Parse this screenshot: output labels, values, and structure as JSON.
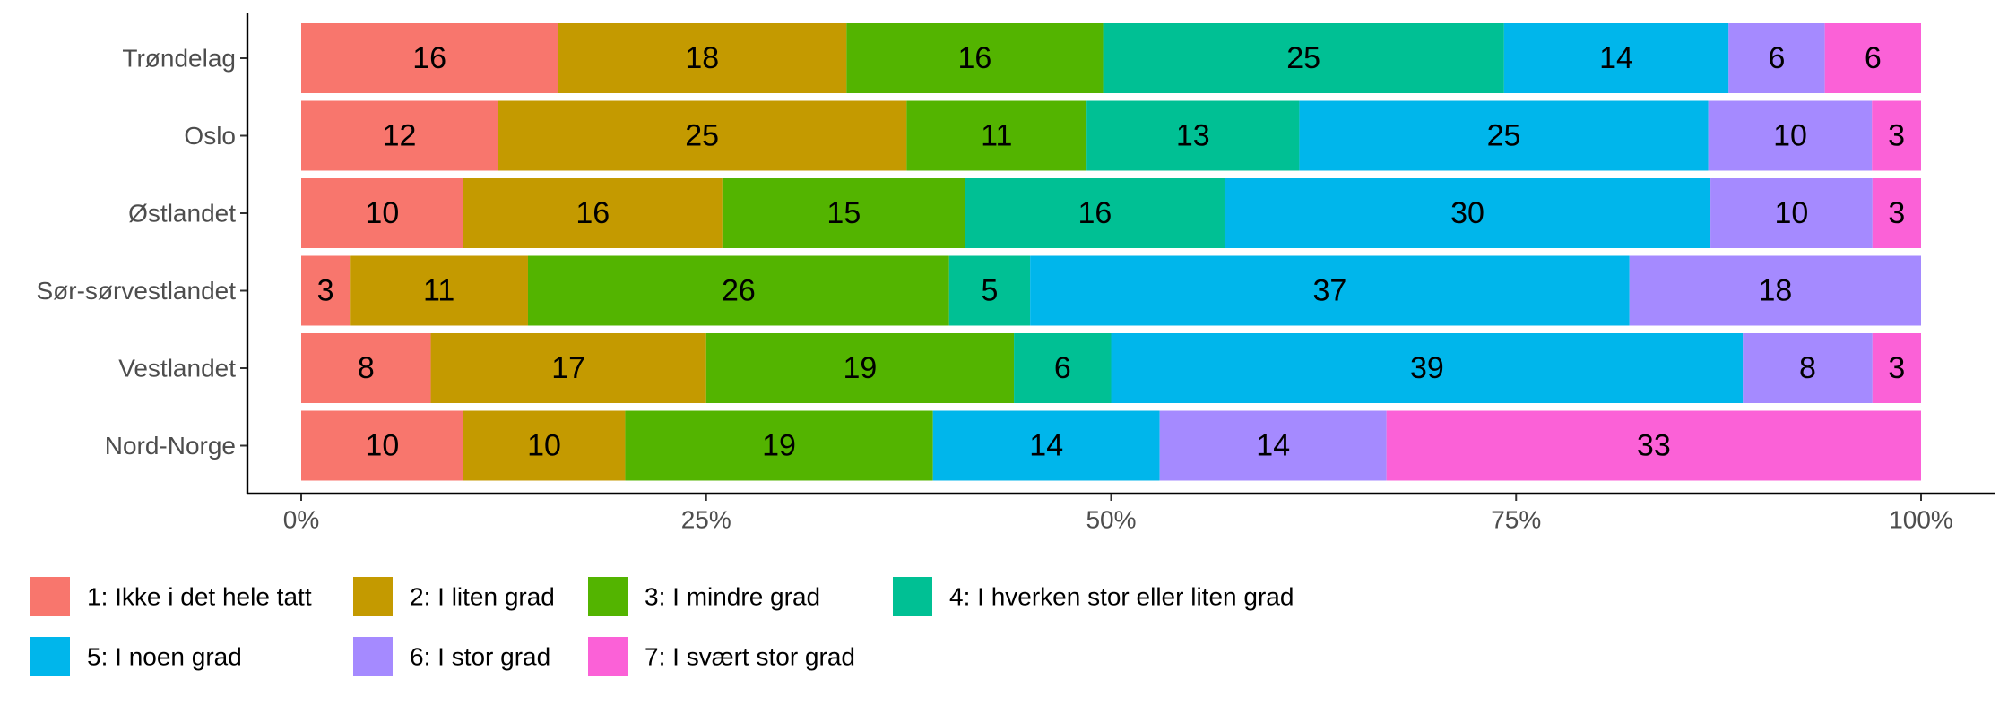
{
  "chart_data": {
    "type": "bar",
    "orientation": "horizontal",
    "stacked": true,
    "percent": true,
    "categories": [
      "Trøndelag",
      "Oslo",
      "Østlandet",
      "Sør-sørvestlandet",
      "Vestlandet",
      "Nord-Norge"
    ],
    "series": [
      {
        "name": "1: Ikke i det hele tatt",
        "color": "#F8766D",
        "values": [
          16,
          12,
          10,
          3,
          8,
          10
        ]
      },
      {
        "name": "2: I liten grad",
        "color": "#C49A00",
        "values": [
          18,
          25,
          16,
          11,
          17,
          10
        ]
      },
      {
        "name": "3: I mindre grad",
        "color": "#53B400",
        "values": [
          16,
          11,
          15,
          26,
          19,
          19
        ]
      },
      {
        "name": "4: I hverken stor eller liten grad",
        "color": "#00C094",
        "values": [
          25,
          13,
          16,
          5,
          6,
          0
        ]
      },
      {
        "name": "5: I noen grad",
        "color": "#00B6EB",
        "values": [
          14,
          25,
          30,
          37,
          39,
          14
        ]
      },
      {
        "name": "6: I stor grad",
        "color": "#A58AFF",
        "values": [
          6,
          10,
          10,
          18,
          8,
          14
        ]
      },
      {
        "name": "7: I svært stor grad",
        "color": "#FB61D7",
        "values": [
          6,
          3,
          3,
          0,
          3,
          33
        ]
      }
    ],
    "x_ticks": [
      "0%",
      "25%",
      "50%",
      "75%",
      "100%"
    ],
    "xlim": [
      0,
      100
    ],
    "xlabel": "",
    "ylabel": "",
    "title": "",
    "grid": false,
    "legend_position": "bottom"
  }
}
